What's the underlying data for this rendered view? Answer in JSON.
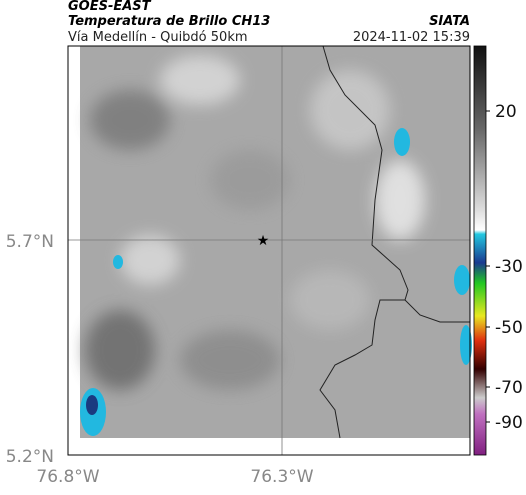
{
  "header": {
    "satellite": "GOES-EAST",
    "product": "Temperatura de Brillo CH13",
    "region": "Vía Medellín - Quibdó 50km",
    "source": "SIATA",
    "timestamp": "2024-11-02 15:39"
  },
  "map": {
    "lat_labels": [
      "5.7°N",
      "5.2°N"
    ],
    "lon_labels": [
      "76.8°W",
      "76.3°W"
    ]
  },
  "colorbar": {
    "labels": [
      "20",
      "-30",
      "-50",
      "-70",
      "-90"
    ]
  }
}
